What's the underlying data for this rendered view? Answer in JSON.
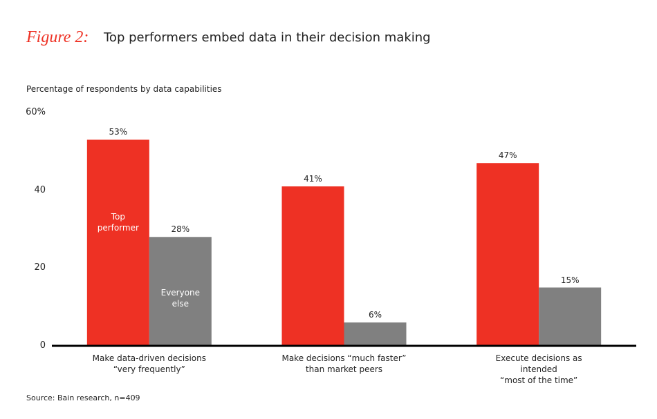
{
  "chart_data": {
    "type": "bar",
    "figure_label": "Figure 2:",
    "title": "Top performers embed data in their decision making",
    "y_axis_label": "Percentage of respondents by data capabilities",
    "categories": [
      "Make data-driven decisions\n“very frequently”",
      "Make decisions “much faster”\nthan market peers",
      "Execute decisions as intended\n“most of the time”"
    ],
    "series": [
      {
        "name": "Top\nperformer",
        "color": "#ee3124",
        "values": [
          53,
          41,
          47
        ],
        "value_labels": [
          "53%",
          "41%",
          "47%"
        ]
      },
      {
        "name": "Everyone\nelse",
        "color": "#808080",
        "values": [
          28,
          6,
          15
        ],
        "value_labels": [
          "28%",
          "6%",
          "15%"
        ]
      }
    ],
    "ylim": [
      0,
      60
    ],
    "yticks": [
      0,
      20,
      40,
      {
        "value": 60,
        "label": "60%"
      }
    ],
    "grid": false,
    "legend": "inside-bars",
    "source": "Source: Bain research, n=409"
  }
}
